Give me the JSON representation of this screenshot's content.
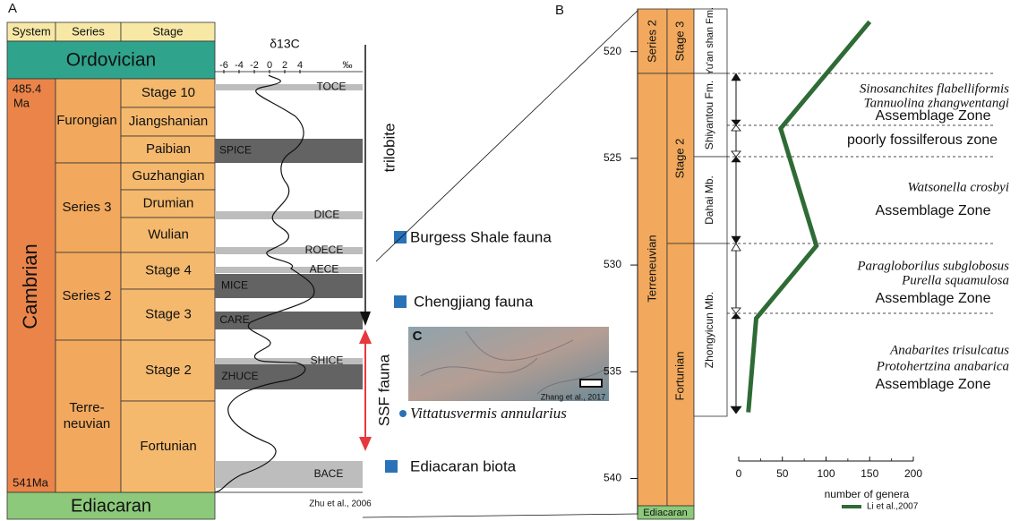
{
  "panel_a": {
    "label": "A",
    "headers": [
      "System",
      "Series",
      "Stage"
    ],
    "ordovician": "Ordovician",
    "cambrian": "Cambrian",
    "ediacaran": "Ediacaran",
    "age_top": [
      "485.4",
      "Ma"
    ],
    "age_bottom": "541Ma",
    "series": [
      [
        "Furongian"
      ],
      [
        "Series 3"
      ],
      [
        "Series 2"
      ],
      [
        "Terre-",
        "neuvian"
      ]
    ],
    "stages": [
      "Stage 10",
      "Jiangshanian",
      "Paibian",
      "Guzhangian",
      "Drumian",
      "Wulian",
      "Stage 4",
      "Stage 3",
      "Stage 2",
      "Fortunian"
    ],
    "isotope": {
      "title": "δ13C",
      "scale": [
        -6,
        -4,
        -2,
        0,
        2,
        4
      ],
      "unit": "‰",
      "events": [
        "TOCE",
        "SPICE",
        "DICE",
        "ROECE",
        "AECE",
        "MICE",
        "CARE",
        "SHICE",
        "ZHUCE",
        "BACE"
      ],
      "source": "Zhu et al., 2006"
    },
    "trilobite": "trilobite",
    "ssf": "SSF fauna",
    "faunas": [
      "Burgess Shale fauna",
      "Chengjiang fauna",
      "Vittatusvermis annularius",
      "Ediacaran biota"
    ],
    "inset": {
      "label": "C",
      "credit": "Zhang et al., 2017"
    }
  },
  "panel_b": {
    "label": "B",
    "series": [
      "Series 2",
      "Terreneuvian"
    ],
    "stages": [
      "Stage 3",
      "Stage 2",
      "Fortunian"
    ],
    "ediacaran": "Ediacaran",
    "formations": [
      "Yu'an shan Fm.",
      "Shiyantou Fm.",
      "Dahai Mb.",
      "Zhongyicun Mb."
    ],
    "zones": [
      {
        "taxa": [
          "Sinosanchites flabelliformis",
          "Tannuolina zhangwentangi"
        ],
        "name": "Assemblage Zone"
      },
      {
        "taxa": [],
        "name": "poorly fossilferous zone"
      },
      {
        "taxa": [
          "Watsonella crosbyi"
        ],
        "name": "Assemblage Zone"
      },
      {
        "taxa": [
          "Paragloborilus subglobosus",
          "Purella squamulosa"
        ],
        "name": "Assemblage Zone"
      },
      {
        "taxa": [
          "Anabarites trisulcatus",
          "Protohertzina anabarica"
        ],
        "name": "Assemblage Zone"
      }
    ],
    "chart_data": {
      "type": "line",
      "x_label": "number of genera",
      "ylim": [
        518,
        541.7
      ],
      "yticks": [
        520,
        525,
        530,
        535,
        540
      ],
      "xlim": [
        0,
        200
      ],
      "xticks": [
        0,
        50,
        100,
        150,
        200
      ],
      "series": [
        {
          "name": "Li et al.,2007",
          "color": "#2e6b35",
          "x": [
            150,
            48,
            89,
            20,
            11
          ],
          "values": [
            518.6,
            523.6,
            529.1,
            532.5,
            536.9
          ]
        }
      ]
    }
  }
}
